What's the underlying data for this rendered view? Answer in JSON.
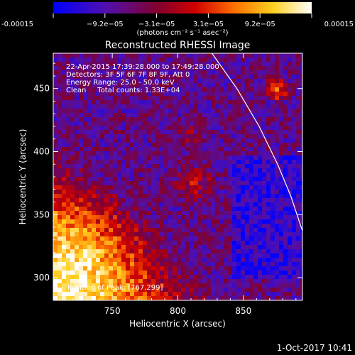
{
  "colorbar": {
    "tick_labels": [
      "-0.00015",
      "−9.2e−05",
      "−3.1e−05",
      "3.1e−05",
      "9.2e−05",
      "0.00015"
    ],
    "range": [
      -0.00015,
      0.00015
    ],
    "units": "(photons cm⁻² s⁻¹ asec⁻²)",
    "colormap": [
      "#0000ff",
      "#5010b0",
      "#800030",
      "#d00000",
      "#ff7000",
      "#ffd020",
      "#ffffff"
    ]
  },
  "chart_data": {
    "type": "heatmap",
    "title": "Reconstructed RHESSI Image",
    "xlabel": "Heliocentric X (arcsec)",
    "ylabel": "Heliocentric Y (arcsec)",
    "xlim": [
      705,
      895
    ],
    "ylim": [
      282,
      478
    ],
    "xticks": [
      750,
      800,
      850
    ],
    "yticks": [
      300,
      350,
      400,
      450
    ],
    "annotations": [
      "22-Apr-2015 17:39:28.000 to 17:49:28.000",
      "Detectors: 3F 5F 6F 7F 8F 9F, Att 0",
      "Energy Range: 25.0 - 50.0 keV",
      "Clean     Total counts: 1.33E+04"
    ],
    "peak_label": "Position of Peak: [767,299]",
    "peak": [
      767,
      299
    ],
    "limb_curve": [
      [
        826,
        478
      ],
      [
        845,
        450
      ],
      [
        862,
        420
      ],
      [
        876,
        390
      ],
      [
        886,
        365
      ],
      [
        895,
        337
      ]
    ]
  },
  "timestamp": "1-Oct-2017 10:41"
}
